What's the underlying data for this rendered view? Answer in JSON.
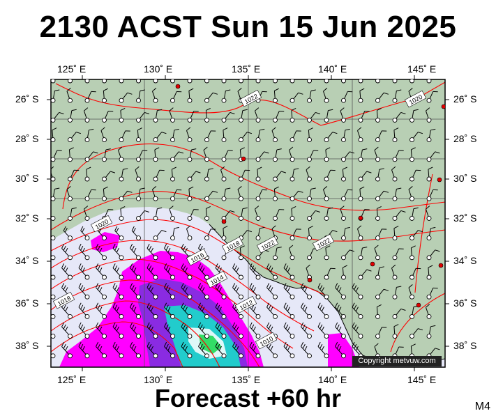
{
  "title": "2130 ACST Sun 15 Jun 2025",
  "footer": "Forecast +60 hr",
  "model": "M4",
  "copyright": "Copyright metvuw.com",
  "longitude_labels": [
    "125˚ E",
    "130˚ E",
    "135˚ E",
    "140˚ E",
    "145˚ E"
  ],
  "latitude_labels": [
    "26˚ S",
    "28˚ S",
    "30˚ S",
    "32˚ S",
    "34˚ S",
    "36˚ S",
    "38˚ S"
  ],
  "isobar_labels": [
    "1022",
    "1020",
    "1020",
    "1022",
    "1018",
    "1016",
    "1022",
    "1014",
    "1018",
    "1012",
    "1010"
  ],
  "colors": {
    "land": "#b8cfb4",
    "sea_calm": "#e6e8f8",
    "isobar": "#ff0000",
    "rain_light": "#ff00ff",
    "rain_mod": "#8a2be2",
    "rain_heavy": "#00cccc"
  }
}
